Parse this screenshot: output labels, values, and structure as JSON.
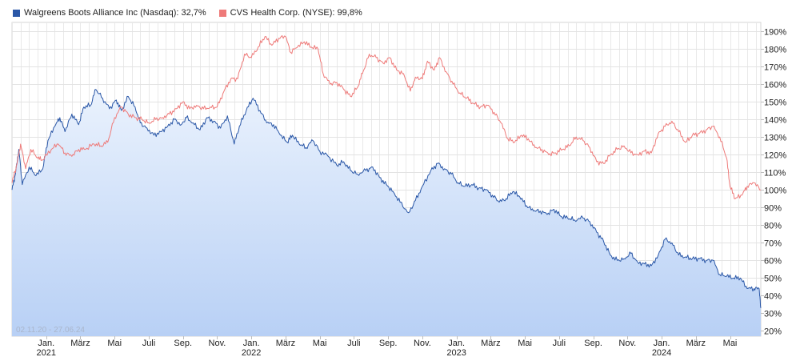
{
  "legend": [
    {
      "label": "Walgreens Boots Alliance Inc (Nasdaq): 32,7%",
      "color": "#2a57a7"
    },
    {
      "label": "CVS Health Corp. (NYSE): 99,8%",
      "color": "#ee7a79"
    }
  ],
  "date_range": "02.11.20 - 27.06.24",
  "chart_data": {
    "type": "line",
    "title": "",
    "xlabel": "",
    "ylabel": "",
    "ylim": [
      17,
      195
    ],
    "xlim": [
      0,
      43.8
    ],
    "grid": true,
    "y_ticks": [
      20,
      30,
      40,
      50,
      60,
      70,
      80,
      90,
      100,
      110,
      120,
      130,
      140,
      150,
      160,
      170,
      180,
      190
    ],
    "y_tick_labels": [
      "20%",
      "30%",
      "40%",
      "50%",
      "60%",
      "70%",
      "80%",
      "90%",
      "100%",
      "110%",
      "120%",
      "130%",
      "140%",
      "150%",
      "160%",
      "170%",
      "180%",
      "190%"
    ],
    "x_ticks": [
      {
        "pos": 2.0,
        "label": "Jan.",
        "year": "2021"
      },
      {
        "pos": 4.0,
        "label": "März",
        "year": ""
      },
      {
        "pos": 6.0,
        "label": "Mai",
        "year": ""
      },
      {
        "pos": 8.0,
        "label": "Juli",
        "year": ""
      },
      {
        "pos": 10.0,
        "label": "Sep.",
        "year": ""
      },
      {
        "pos": 12.0,
        "label": "Nov.",
        "year": ""
      },
      {
        "pos": 14.0,
        "label": "Jan.",
        "year": "2022"
      },
      {
        "pos": 16.0,
        "label": "März",
        "year": ""
      },
      {
        "pos": 18.0,
        "label": "Mai",
        "year": ""
      },
      {
        "pos": 20.0,
        "label": "Juli",
        "year": ""
      },
      {
        "pos": 22.0,
        "label": "Sep.",
        "year": ""
      },
      {
        "pos": 24.0,
        "label": "Nov.",
        "year": ""
      },
      {
        "pos": 26.0,
        "label": "Jan.",
        "year": "2023"
      },
      {
        "pos": 28.0,
        "label": "März",
        "year": ""
      },
      {
        "pos": 30.0,
        "label": "Mai",
        "year": ""
      },
      {
        "pos": 32.0,
        "label": "Juli",
        "year": ""
      },
      {
        "pos": 34.0,
        "label": "Sep.",
        "year": ""
      },
      {
        "pos": 36.0,
        "label": "Nov.",
        "year": ""
      },
      {
        "pos": 38.0,
        "label": "Jan.",
        "year": "2024"
      },
      {
        "pos": 40.0,
        "label": "März",
        "year": ""
      },
      {
        "pos": 42.0,
        "label": "Mai",
        "year": ""
      }
    ],
    "series": [
      {
        "name": "Walgreens Boots Alliance Inc (Nasdaq)",
        "color": "#2a57a7",
        "fill": true,
        "points": [
          [
            0,
            100
          ],
          [
            0.2,
            109
          ],
          [
            0.4,
            123
          ],
          [
            0.6,
            103
          ],
          [
            1.0,
            113
          ],
          [
            1.4,
            108
          ],
          [
            1.8,
            112
          ],
          [
            2.1,
            128
          ],
          [
            2.5,
            136
          ],
          [
            2.8,
            141
          ],
          [
            3.1,
            133
          ],
          [
            3.5,
            143
          ],
          [
            3.9,
            137
          ],
          [
            4.2,
            147
          ],
          [
            4.6,
            148
          ],
          [
            4.9,
            157
          ],
          [
            5.3,
            152
          ],
          [
            5.7,
            146
          ],
          [
            6.1,
            151
          ],
          [
            6.4,
            145
          ],
          [
            6.8,
            153
          ],
          [
            7.2,
            147
          ],
          [
            7.5,
            138
          ],
          [
            7.9,
            135
          ],
          [
            8.3,
            131
          ],
          [
            8.7,
            133
          ],
          [
            9.1,
            136
          ],
          [
            9.5,
            140
          ],
          [
            9.9,
            137
          ],
          [
            10.2,
            141
          ],
          [
            10.6,
            138
          ],
          [
            11.0,
            134
          ],
          [
            11.4,
            141
          ],
          [
            11.8,
            139
          ],
          [
            12.2,
            135
          ],
          [
            12.6,
            142
          ],
          [
            13.0,
            126
          ],
          [
            13.3,
            136
          ],
          [
            13.7,
            145
          ],
          [
            14.1,
            152
          ],
          [
            14.5,
            145
          ],
          [
            14.9,
            138
          ],
          [
            15.3,
            137
          ],
          [
            15.7,
            131
          ],
          [
            16.1,
            127
          ],
          [
            16.4,
            131
          ],
          [
            16.8,
            126
          ],
          [
            17.2,
            124
          ],
          [
            17.6,
            128
          ],
          [
            18.0,
            122
          ],
          [
            18.5,
            119
          ],
          [
            19.0,
            114
          ],
          [
            19.4,
            116
          ],
          [
            19.8,
            111
          ],
          [
            20.2,
            109
          ],
          [
            20.7,
            111
          ],
          [
            21.1,
            113
          ],
          [
            21.5,
            107
          ],
          [
            21.9,
            103
          ],
          [
            22.3,
            99
          ],
          [
            22.7,
            93
          ],
          [
            23.2,
            87
          ],
          [
            23.6,
            94
          ],
          [
            24.0,
            102
          ],
          [
            24.5,
            111
          ],
          [
            24.9,
            115
          ],
          [
            25.3,
            112
          ],
          [
            25.7,
            109
          ],
          [
            26.1,
            104
          ],
          [
            26.5,
            102
          ],
          [
            26.9,
            103
          ],
          [
            27.3,
            101
          ],
          [
            27.7,
            100
          ],
          [
            28.1,
            97
          ],
          [
            28.5,
            93
          ],
          [
            28.9,
            95
          ],
          [
            29.3,
            99
          ],
          [
            29.7,
            96
          ],
          [
            30.1,
            91
          ],
          [
            30.5,
            88
          ],
          [
            30.9,
            88
          ],
          [
            31.3,
            86
          ],
          [
            31.7,
            89
          ],
          [
            32.1,
            85
          ],
          [
            32.5,
            84
          ],
          [
            32.9,
            83
          ],
          [
            33.4,
            84
          ],
          [
            33.8,
            82
          ],
          [
            34.2,
            76
          ],
          [
            34.6,
            71
          ],
          [
            35.0,
            63
          ],
          [
            35.4,
            60
          ],
          [
            35.8,
            61
          ],
          [
            36.2,
            64
          ],
          [
            36.6,
            59
          ],
          [
            37.0,
            58
          ],
          [
            37.4,
            57
          ],
          [
            37.8,
            63
          ],
          [
            38.2,
            72
          ],
          [
            38.6,
            70
          ],
          [
            39.0,
            63
          ],
          [
            39.4,
            62
          ],
          [
            39.8,
            61
          ],
          [
            40.2,
            61
          ],
          [
            40.6,
            60
          ],
          [
            41.0,
            60
          ],
          [
            41.4,
            52
          ],
          [
            41.8,
            51
          ],
          [
            42.2,
            50
          ],
          [
            42.6,
            50
          ],
          [
            43.0,
            44
          ],
          [
            43.4,
            44
          ],
          [
            43.7,
            44
          ],
          [
            43.8,
            33
          ]
        ]
      },
      {
        "name": "CVS Health Corp. (NYSE)",
        "color": "#ee7a79",
        "fill": false,
        "points": [
          [
            0,
            104
          ],
          [
            0.3,
            115
          ],
          [
            0.5,
            126
          ],
          [
            0.8,
            112
          ],
          [
            1.1,
            123
          ],
          [
            1.5,
            118
          ],
          [
            1.8,
            117
          ],
          [
            2.3,
            123
          ],
          [
            2.7,
            126
          ],
          [
            3.1,
            121
          ],
          [
            3.5,
            119
          ],
          [
            3.9,
            123
          ],
          [
            4.3,
            123
          ],
          [
            4.8,
            126
          ],
          [
            5.2,
            125
          ],
          [
            5.6,
            127
          ],
          [
            6.0,
            141
          ],
          [
            6.4,
            147
          ],
          [
            6.8,
            143
          ],
          [
            7.2,
            141
          ],
          [
            7.6,
            140
          ],
          [
            8.0,
            138
          ],
          [
            8.4,
            140
          ],
          [
            8.8,
            141
          ],
          [
            9.2,
            143
          ],
          [
            9.6,
            146
          ],
          [
            10.0,
            150
          ],
          [
            10.4,
            146
          ],
          [
            10.8,
            148
          ],
          [
            11.2,
            146
          ],
          [
            11.6,
            147
          ],
          [
            12.0,
            147
          ],
          [
            12.4,
            156
          ],
          [
            12.8,
            163
          ],
          [
            13.2,
            163
          ],
          [
            13.6,
            177
          ],
          [
            14.0,
            175
          ],
          [
            14.4,
            181
          ],
          [
            14.8,
            187
          ],
          [
            15.2,
            182
          ],
          [
            15.6,
            186
          ],
          [
            16.0,
            187
          ],
          [
            16.3,
            178
          ],
          [
            16.7,
            181
          ],
          [
            17.1,
            184
          ],
          [
            17.5,
            181
          ],
          [
            17.9,
            180
          ],
          [
            18.2,
            166
          ],
          [
            18.6,
            160
          ],
          [
            19.0,
            161
          ],
          [
            19.4,
            157
          ],
          [
            19.8,
            153
          ],
          [
            20.2,
            158
          ],
          [
            20.5,
            166
          ],
          [
            20.9,
            177
          ],
          [
            21.3,
            175
          ],
          [
            21.7,
            172
          ],
          [
            22.1,
            175
          ],
          [
            22.5,
            168
          ],
          [
            22.9,
            166
          ],
          [
            23.3,
            156
          ],
          [
            23.6,
            164
          ],
          [
            24.0,
            163
          ],
          [
            24.3,
            173
          ],
          [
            24.7,
            168
          ],
          [
            25.0,
            175
          ],
          [
            25.4,
            167
          ],
          [
            25.8,
            160
          ],
          [
            26.2,
            155
          ],
          [
            26.6,
            152
          ],
          [
            27.0,
            149
          ],
          [
            27.4,
            147
          ],
          [
            27.8,
            148
          ],
          [
            28.2,
            144
          ],
          [
            28.6,
            138
          ],
          [
            29.0,
            129
          ],
          [
            29.4,
            127
          ],
          [
            29.8,
            131
          ],
          [
            30.2,
            129
          ],
          [
            30.6,
            124
          ],
          [
            31.0,
            123
          ],
          [
            31.4,
            120
          ],
          [
            31.8,
            121
          ],
          [
            32.2,
            123
          ],
          [
            32.6,
            125
          ],
          [
            33.0,
            130
          ],
          [
            33.4,
            128
          ],
          [
            33.8,
            124
          ],
          [
            34.2,
            116
          ],
          [
            34.6,
            115
          ],
          [
            35.0,
            120
          ],
          [
            35.4,
            123
          ],
          [
            35.8,
            125
          ],
          [
            36.2,
            121
          ],
          [
            36.6,
            120
          ],
          [
            37.0,
            122
          ],
          [
            37.4,
            121
          ],
          [
            37.8,
            132
          ],
          [
            38.2,
            136
          ],
          [
            38.6,
            139
          ],
          [
            39.0,
            133
          ],
          [
            39.4,
            127
          ],
          [
            39.8,
            131
          ],
          [
            40.2,
            132
          ],
          [
            40.6,
            134
          ],
          [
            41.0,
            136
          ],
          [
            41.4,
            130
          ],
          [
            41.8,
            118
          ],
          [
            42.0,
            102
          ],
          [
            42.3,
            95
          ],
          [
            42.7,
            97
          ],
          [
            43.0,
            102
          ],
          [
            43.4,
            104
          ],
          [
            43.8,
            100
          ]
        ]
      }
    ]
  }
}
